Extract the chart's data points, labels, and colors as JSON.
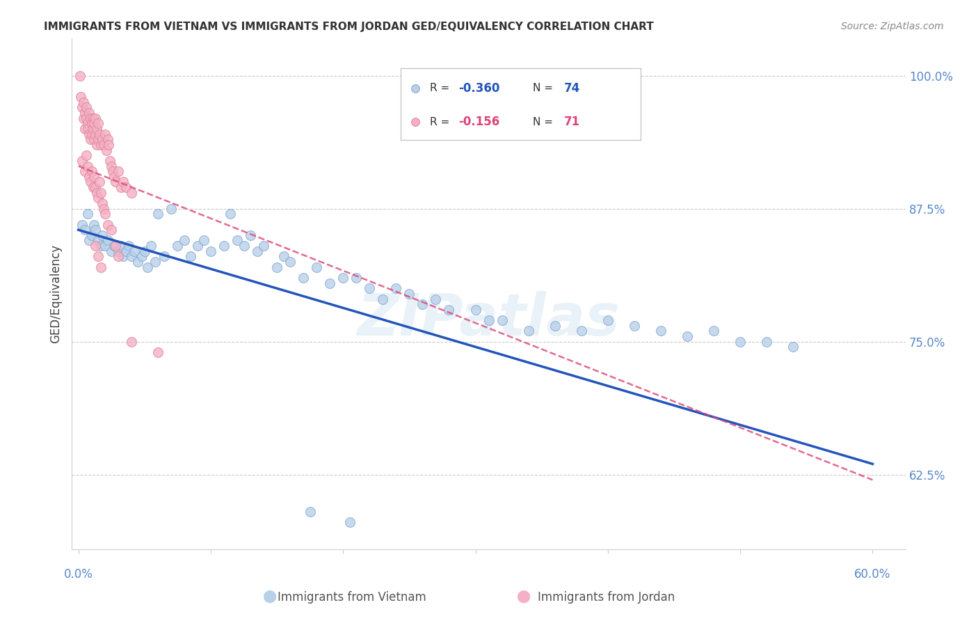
{
  "title": "IMMIGRANTS FROM VIETNAM VS IMMIGRANTS FROM JORDAN GED/EQUIVALENCY CORRELATION CHART",
  "source": "Source: ZipAtlas.com",
  "ylabel": "GED/Equivalency",
  "ytick_labels": [
    "100.0%",
    "87.5%",
    "75.0%",
    "62.5%"
  ],
  "ytick_values": [
    1.0,
    0.875,
    0.75,
    0.625
  ],
  "ylim": [
    0.555,
    1.035
  ],
  "xlim": [
    -0.005,
    0.625
  ],
  "watermark": "ZIPatlas",
  "legend": {
    "vietnam": {
      "R": "-0.360",
      "N": "74"
    },
    "jordan": {
      "R": "-0.156",
      "N": "71"
    }
  },
  "vietnam_scatter_x": [
    0.003,
    0.005,
    0.007,
    0.008,
    0.01,
    0.012,
    0.013,
    0.015,
    0.017,
    0.018,
    0.02,
    0.022,
    0.025,
    0.027,
    0.03,
    0.032,
    0.034,
    0.036,
    0.038,
    0.04,
    0.042,
    0.045,
    0.048,
    0.05,
    0.052,
    0.055,
    0.058,
    0.06,
    0.065,
    0.07,
    0.075,
    0.08,
    0.085,
    0.09,
    0.095,
    0.1,
    0.11,
    0.115,
    0.12,
    0.125,
    0.13,
    0.135,
    0.14,
    0.15,
    0.155,
    0.16,
    0.17,
    0.18,
    0.19,
    0.2,
    0.21,
    0.22,
    0.23,
    0.24,
    0.25,
    0.26,
    0.27,
    0.28,
    0.3,
    0.31,
    0.32,
    0.34,
    0.36,
    0.38,
    0.4,
    0.42,
    0.44,
    0.46,
    0.48,
    0.5,
    0.52,
    0.54,
    0.175,
    0.205
  ],
  "vietnam_scatter_y": [
    0.86,
    0.855,
    0.87,
    0.845,
    0.85,
    0.86,
    0.855,
    0.845,
    0.84,
    0.85,
    0.84,
    0.845,
    0.835,
    0.84,
    0.835,
    0.84,
    0.83,
    0.835,
    0.84,
    0.83,
    0.835,
    0.825,
    0.83,
    0.835,
    0.82,
    0.84,
    0.825,
    0.87,
    0.83,
    0.875,
    0.84,
    0.845,
    0.83,
    0.84,
    0.845,
    0.835,
    0.84,
    0.87,
    0.845,
    0.84,
    0.85,
    0.835,
    0.84,
    0.82,
    0.83,
    0.825,
    0.81,
    0.82,
    0.805,
    0.81,
    0.81,
    0.8,
    0.79,
    0.8,
    0.795,
    0.785,
    0.79,
    0.78,
    0.78,
    0.77,
    0.77,
    0.76,
    0.765,
    0.76,
    0.77,
    0.765,
    0.76,
    0.755,
    0.76,
    0.75,
    0.75,
    0.745,
    0.59,
    0.58
  ],
  "jordan_scatter_x": [
    0.001,
    0.002,
    0.003,
    0.004,
    0.004,
    0.005,
    0.005,
    0.006,
    0.006,
    0.007,
    0.007,
    0.008,
    0.008,
    0.009,
    0.009,
    0.01,
    0.01,
    0.011,
    0.011,
    0.012,
    0.012,
    0.013,
    0.013,
    0.014,
    0.014,
    0.015,
    0.015,
    0.016,
    0.017,
    0.018,
    0.019,
    0.02,
    0.021,
    0.022,
    0.023,
    0.024,
    0.025,
    0.026,
    0.027,
    0.028,
    0.03,
    0.032,
    0.034,
    0.036,
    0.04,
    0.003,
    0.005,
    0.006,
    0.007,
    0.008,
    0.009,
    0.01,
    0.011,
    0.012,
    0.013,
    0.014,
    0.015,
    0.016,
    0.017,
    0.018,
    0.019,
    0.02,
    0.022,
    0.025,
    0.028,
    0.03,
    0.013,
    0.015,
    0.017,
    0.04,
    0.06
  ],
  "jordan_scatter_y": [
    1.0,
    0.98,
    0.97,
    0.975,
    0.96,
    0.965,
    0.95,
    0.96,
    0.97,
    0.955,
    0.95,
    0.965,
    0.945,
    0.96,
    0.94,
    0.955,
    0.945,
    0.95,
    0.96,
    0.94,
    0.955,
    0.945,
    0.96,
    0.935,
    0.95,
    0.94,
    0.955,
    0.945,
    0.935,
    0.94,
    0.935,
    0.945,
    0.93,
    0.94,
    0.935,
    0.92,
    0.915,
    0.91,
    0.905,
    0.9,
    0.91,
    0.895,
    0.9,
    0.895,
    0.89,
    0.92,
    0.91,
    0.925,
    0.915,
    0.905,
    0.9,
    0.91,
    0.895,
    0.905,
    0.895,
    0.89,
    0.885,
    0.9,
    0.89,
    0.88,
    0.875,
    0.87,
    0.86,
    0.855,
    0.84,
    0.83,
    0.84,
    0.83,
    0.82,
    0.75,
    0.74
  ],
  "vietnam_line": {
    "x": [
      0.0,
      0.6
    ],
    "y": [
      0.855,
      0.635
    ]
  },
  "jordan_line": {
    "x": [
      0.0,
      0.6
    ],
    "y": [
      0.915,
      0.62
    ]
  },
  "background_color": "#ffffff",
  "grid_color": "#cccccc",
  "title_color": "#333333",
  "axis_color": "#5588cc",
  "vietnam_color": "#b8d0ea",
  "vietnam_edge": "#88aacc",
  "jordan_color": "#f5b0c5",
  "jordan_edge": "#dd8899",
  "vietnam_line_color": "#2255bb",
  "jordan_line_color": "#dd4477"
}
